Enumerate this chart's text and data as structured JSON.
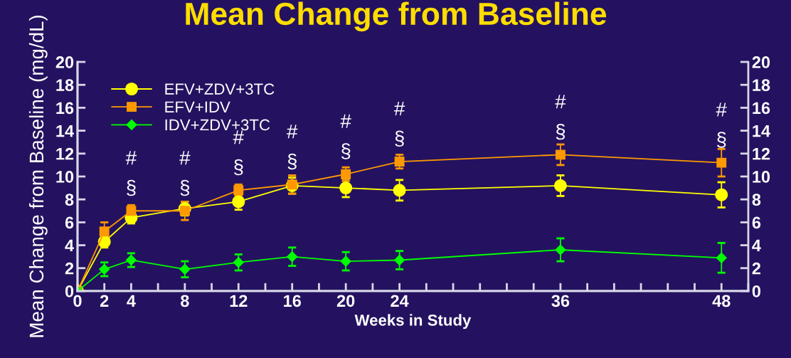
{
  "chart_data": {
    "type": "line",
    "title": "Mean Change from Baseline",
    "xlabel": "Weeks in Study",
    "ylabel": "Mean Change from Baseline (mg/dL)",
    "x": [
      0,
      2,
      4,
      8,
      12,
      16,
      20,
      24,
      36,
      48
    ],
    "xlim": [
      0,
      50
    ],
    "xticks": [
      0,
      2,
      4,
      {
        "value": 6,
        "label": null
      },
      8,
      {
        "value": 10,
        "label": null
      },
      12,
      {
        "value": 14,
        "label": null
      },
      16,
      {
        "value": 18,
        "label": null
      },
      20,
      {
        "value": 22,
        "label": null
      },
      24,
      {
        "value": 26,
        "label": null
      },
      {
        "value": 28,
        "label": null
      },
      {
        "value": 30,
        "label": null
      },
      {
        "value": 32,
        "label": null
      },
      {
        "value": 34,
        "label": null
      },
      36,
      {
        "value": 38,
        "label": null
      },
      {
        "value": 40,
        "label": null
      },
      {
        "value": 42,
        "label": null
      },
      {
        "value": 44,
        "label": null
      },
      {
        "value": 46,
        "label": null
      },
      48,
      {
        "value": 50,
        "label": null
      }
    ],
    "ylim": [
      0,
      20
    ],
    "yticks": [
      0,
      2,
      4,
      6,
      8,
      10,
      12,
      14,
      16,
      18,
      20
    ],
    "y2lim": [
      0,
      20
    ],
    "y2ticks": [
      0,
      2,
      4,
      6,
      8,
      10,
      12,
      14,
      16,
      18,
      20
    ],
    "series": [
      {
        "name": "EFV+ZDV+3TC",
        "color": "#ffff00",
        "marker": "circle",
        "values": [
          0,
          4.3,
          6.4,
          7.2,
          7.8,
          9.2,
          9.0,
          8.8,
          9.2,
          8.4
        ],
        "errors": [
          null,
          0.5,
          0.5,
          0.6,
          0.7,
          0.7,
          0.8,
          0.9,
          0.9,
          1.1
        ]
      },
      {
        "name": "EFV+IDV",
        "color": "#ff9900",
        "marker": "square",
        "values": [
          0,
          5.2,
          7.0,
          7.0,
          8.8,
          9.3,
          10.2,
          11.3,
          11.9,
          11.2
        ],
        "errors": [
          null,
          0.8,
          0.5,
          0.8,
          0.5,
          0.8,
          0.6,
          0.6,
          0.9,
          1.2
        ]
      },
      {
        "name": "IDV+ZDV+3TC",
        "color": "#00ff00",
        "marker": "diamond",
        "values": [
          0,
          1.9,
          2.7,
          1.9,
          2.5,
          3.0,
          2.6,
          2.7,
          3.6,
          2.9
        ],
        "errors": [
          null,
          0.6,
          0.6,
          0.7,
          0.7,
          0.8,
          0.8,
          0.8,
          1.0,
          1.3
        ]
      }
    ],
    "annotations": [
      {
        "text": "#",
        "x": 4,
        "y": 7.0
      },
      {
        "text": "§",
        "x": 4,
        "y": 7.0
      },
      {
        "text": "#",
        "x": 8,
        "y": 7.0
      },
      {
        "text": "§",
        "x": 8,
        "y": 7.0
      },
      {
        "text": "#",
        "x": 12,
        "y": 8.8
      },
      {
        "text": "§",
        "x": 12,
        "y": 8.8
      },
      {
        "text": "#",
        "x": 16,
        "y": 9.3
      },
      {
        "text": "§",
        "x": 16,
        "y": 9.3
      },
      {
        "text": "#",
        "x": 20,
        "y": 10.2
      },
      {
        "text": "§",
        "x": 20,
        "y": 10.2
      },
      {
        "text": "#",
        "x": 24,
        "y": 11.3
      },
      {
        "text": "§",
        "x": 24,
        "y": 11.3
      },
      {
        "text": "#",
        "x": 36,
        "y": 11.9
      },
      {
        "text": "§",
        "x": 36,
        "y": 11.9
      },
      {
        "text": "#",
        "x": 48,
        "y": 11.2
      },
      {
        "text": "§",
        "x": 48,
        "y": 11.2
      }
    ],
    "legend": "top left",
    "grid": false
  }
}
